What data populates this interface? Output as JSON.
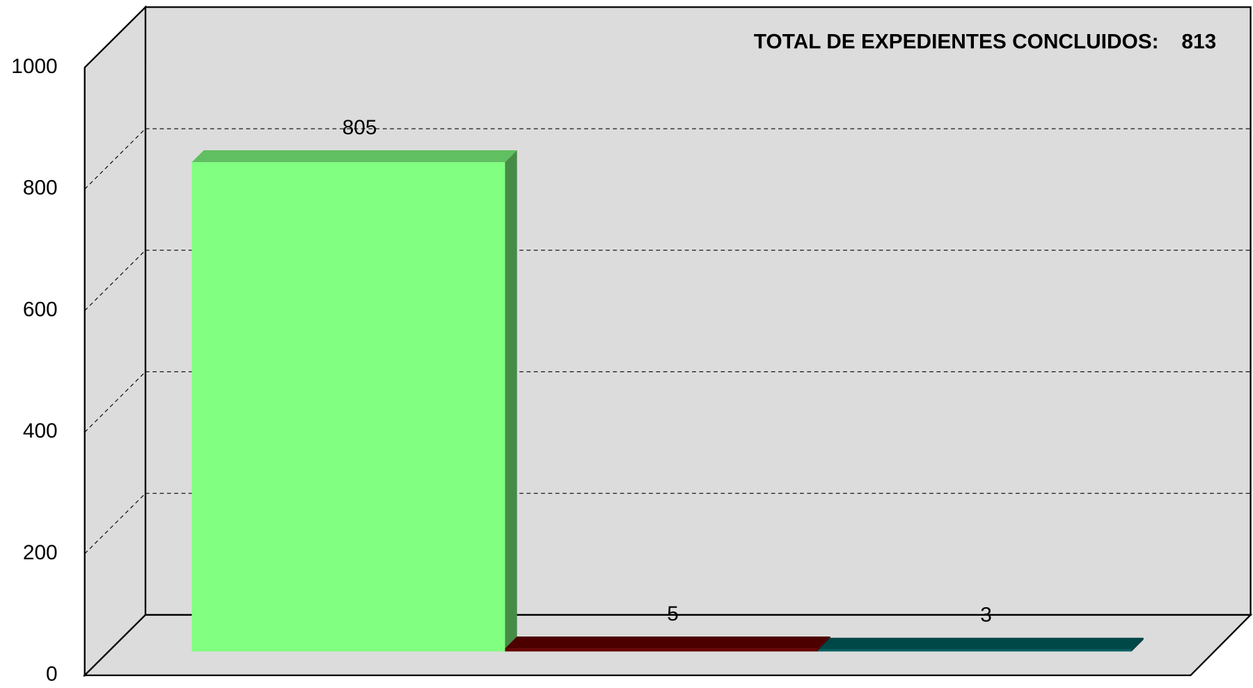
{
  "chart_data": {
    "type": "bar3d",
    "annotation": "TOTAL DE EXPEDIENTES CONCLUIDOS:",
    "total": 813,
    "categories": [
      null,
      null,
      null
    ],
    "values": [
      805,
      5,
      3
    ],
    "colors": [
      "#80ff80",
      "#660000",
      "#006060"
    ],
    "ylim": [
      0,
      1000
    ],
    "yticks": [
      0,
      200,
      400,
      600,
      800,
      1000
    ],
    "grid": true
  }
}
